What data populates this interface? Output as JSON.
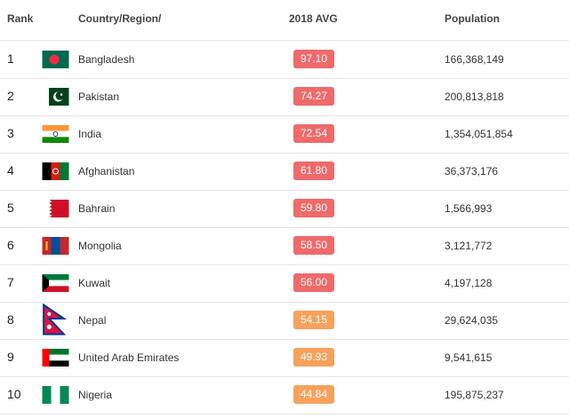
{
  "header": {
    "rank": "Rank",
    "country": "Country/Region/",
    "avg": "2018 AVG",
    "population": "Population"
  },
  "colors": {
    "badge_high": "#ef6a6a",
    "badge_mid": "#f7a15c"
  },
  "rows": [
    {
      "rank": "1",
      "country": "Bangladesh",
      "avg": "97.10",
      "population": "166,368,149",
      "flag": "bangladesh-flag-icon"
    },
    {
      "rank": "2",
      "country": "Pakistan",
      "avg": "74.27",
      "population": "200,813,818",
      "flag": "pakistan-flag-icon"
    },
    {
      "rank": "3",
      "country": "India",
      "avg": "72.54",
      "population": "1,354,051,854",
      "flag": "india-flag-icon"
    },
    {
      "rank": "4",
      "country": "Afghanistan",
      "avg": "61.80",
      "population": "36,373,176",
      "flag": "afghanistan-flag-icon"
    },
    {
      "rank": "5",
      "country": "Bahrain",
      "avg": "59.80",
      "population": "1,566,993",
      "flag": "bahrain-flag-icon"
    },
    {
      "rank": "6",
      "country": "Mongolia",
      "avg": "58.50",
      "population": "3,121,772",
      "flag": "mongolia-flag-icon"
    },
    {
      "rank": "7",
      "country": "Kuwait",
      "avg": "56.00",
      "population": "4,197,128",
      "flag": "kuwait-flag-icon"
    },
    {
      "rank": "8",
      "country": "Nepal",
      "avg": "54.15",
      "population": "29,624,035",
      "flag": "nepal-flag-icon"
    },
    {
      "rank": "9",
      "country": "United Arab Emirates",
      "avg": "49.93",
      "population": "9,541,615",
      "flag": "uae-flag-icon"
    },
    {
      "rank": "10",
      "country": "Nigeria",
      "avg": "44.84",
      "population": "195,875,237",
      "flag": "nigeria-flag-icon"
    }
  ]
}
